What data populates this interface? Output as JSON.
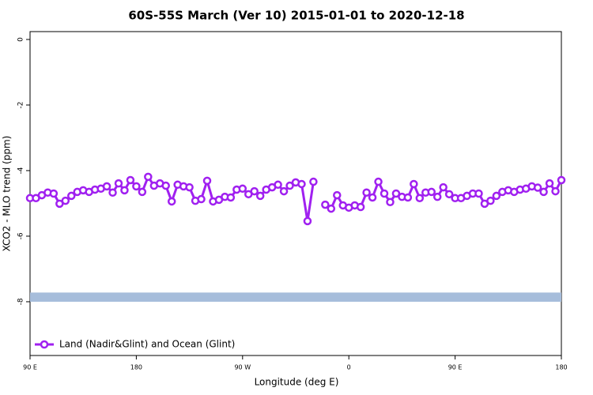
{
  "chart_data": {
    "type": "line",
    "title": "60S-55S March (Ver 10)   2015-01-01 to 2020-12-18",
    "xlabel": "Longitude (deg E)",
    "ylabel": "XCO2 - MLO trend (ppm)",
    "x": [
      90,
      95,
      100,
      105,
      110,
      115,
      120,
      125,
      130,
      135,
      140,
      145,
      150,
      155,
      160,
      165,
      170,
      175,
      180,
      185,
      190,
      195,
      200,
      205,
      210,
      215,
      220,
      225,
      230,
      235,
      240,
      245,
      250,
      255,
      260,
      265,
      270,
      275,
      280,
      285,
      290,
      295,
      300,
      305,
      310,
      315,
      320,
      325,
      330,
      335,
      340,
      345,
      350,
      355,
      360,
      365,
      370,
      375,
      380,
      385,
      390,
      395,
      400,
      405,
      410,
      415,
      420,
      425,
      430,
      435,
      440,
      445,
      450,
      455,
      460,
      465,
      470,
      475,
      480,
      485,
      490,
      495,
      500,
      505,
      510,
      515,
      520,
      525,
      530,
      535,
      540
    ],
    "series": [
      {
        "name": "Land (Nadir&Glint) and Ocean (Glint)",
        "color": "#a020f0",
        "values": [
          -4.84,
          -4.84,
          -4.75,
          -4.67,
          -4.7,
          -5.01,
          -4.92,
          -4.77,
          -4.65,
          -4.6,
          -4.65,
          -4.58,
          -4.55,
          -4.48,
          -4.67,
          -4.39,
          -4.6,
          -4.29,
          -4.48,
          -4.65,
          -4.19,
          -4.46,
          -4.39,
          -4.46,
          -4.94,
          -4.43,
          -4.48,
          -4.51,
          -4.92,
          -4.87,
          -4.31,
          -4.94,
          -4.89,
          -4.8,
          -4.82,
          -4.58,
          -4.55,
          -4.72,
          -4.63,
          -4.77,
          -4.58,
          -4.51,
          -4.43,
          -4.63,
          -4.46,
          -4.36,
          -4.41,
          -5.54,
          -4.34,
          null,
          -5.04,
          -5.16,
          -4.75,
          -5.06,
          -5.13,
          -5.06,
          -5.11,
          -4.67,
          -4.82,
          -4.34,
          -4.7,
          -4.96,
          -4.7,
          -4.8,
          -4.82,
          -4.41,
          -4.84,
          -4.67,
          -4.65,
          -4.8,
          -4.51,
          -4.72,
          -4.84,
          -4.84,
          -4.77,
          -4.7,
          -4.7,
          -5.01,
          -4.92,
          -4.77,
          -4.65,
          -4.6,
          -4.65,
          -4.58,
          -4.55,
          -4.48,
          -4.52,
          -4.65,
          -4.39,
          -4.63,
          -4.29
        ]
      }
    ],
    "band": [
      -7.72,
      -8.0
    ],
    "band_color": "#a6bddb",
    "xlim": [
      90,
      540
    ],
    "xticks": [
      {
        "value": 90,
        "label": "90 E"
      },
      180,
      {
        "value": 270,
        "label": "90 W"
      },
      {
        "value": 360,
        "label": "0"
      },
      {
        "value": 450,
        "label": "90 E"
      },
      {
        "value": 540,
        "label": "180"
      }
    ],
    "ylim": [
      -9.64,
      0.24
    ],
    "yticks": [
      0,
      -2,
      -4,
      -6,
      -8
    ],
    "legend": "bottom-left"
  }
}
